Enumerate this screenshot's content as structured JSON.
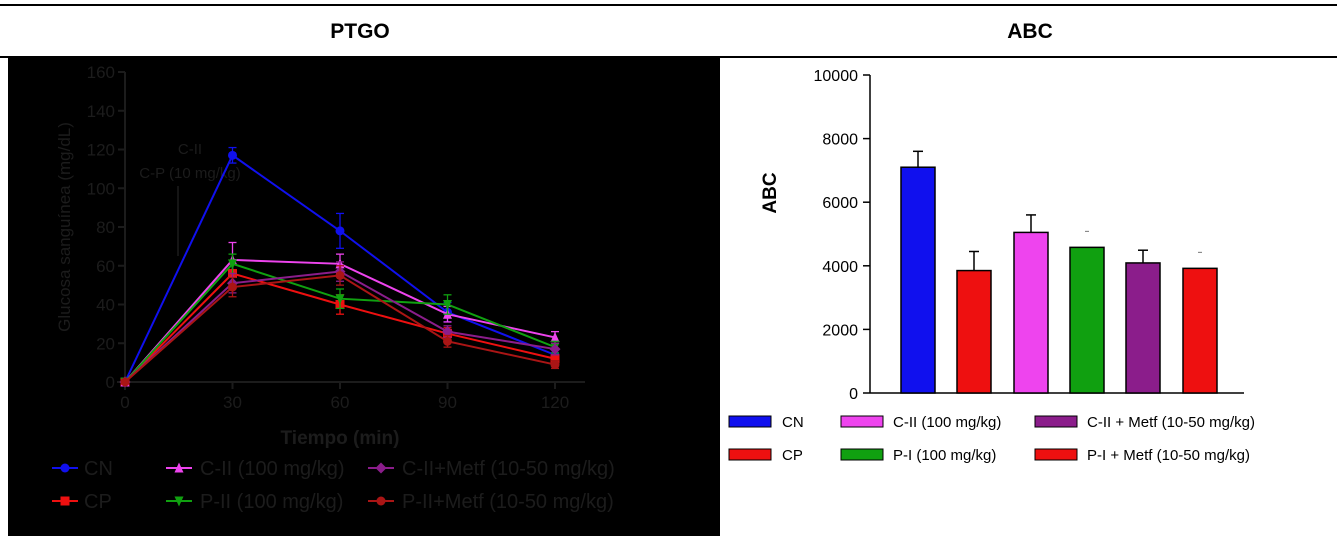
{
  "headers": {
    "left": "PTGO",
    "right": "ABC"
  },
  "colors": {
    "blue": "#1010ee",
    "red": "#ee1010",
    "magenta": "#ee44ee",
    "green": "#10a010",
    "purple": "#8b1d8b",
    "darkred": "#aa1515"
  },
  "chart_data": [
    {
      "type": "line",
      "title": "PTGO",
      "xlabel": "Tiempo (min)",
      "ylabel": "Glucosa sanguínea (mg/dL)",
      "x": [
        0,
        30,
        60,
        90,
        120
      ],
      "xlim": [
        0,
        120
      ],
      "ylim": [
        0,
        160
      ],
      "yticks": [
        0,
        20,
        40,
        60,
        80,
        100,
        120,
        140,
        160
      ],
      "annotation": [
        "C-II",
        "C-P (10 mg/kg)"
      ],
      "series": [
        {
          "name": "CN",
          "color": "#1010ee",
          "marker": "circle",
          "values": [
            0,
            117,
            78,
            36,
            14
          ],
          "errors": [
            0,
            4,
            9,
            5,
            3
          ]
        },
        {
          "name": "CP",
          "color": "#ee1010",
          "marker": "square",
          "values": [
            0,
            56,
            40,
            25,
            12
          ],
          "errors": [
            0,
            5,
            5,
            3,
            2
          ]
        },
        {
          "name": "C-II (100 mg/kg)",
          "color": "#ee44ee",
          "marker": "triangle-up",
          "values": [
            0,
            63,
            61,
            35,
            23
          ],
          "errors": [
            0,
            9,
            5,
            4,
            3
          ]
        },
        {
          "name": "P-II (100 mg/kg)",
          "color": "#10a010",
          "marker": "triangle-down",
          "values": [
            0,
            61,
            43,
            40,
            18
          ],
          "errors": [
            0,
            5,
            5,
            5,
            3
          ]
        },
        {
          "name": "C-II+Metf (10-50 mg/kg)",
          "color": "#8b1d8b",
          "marker": "diamond",
          "values": [
            0,
            51,
            57,
            26,
            17
          ],
          "errors": [
            0,
            5,
            5,
            3,
            3
          ]
        },
        {
          "name": "P-II+Metf (10-50 mg/kg)",
          "color": "#aa1515",
          "marker": "circle",
          "values": [
            0,
            49,
            55,
            21,
            9
          ],
          "errors": [
            0,
            5,
            5,
            3,
            2
          ]
        }
      ]
    },
    {
      "type": "bar",
      "title": "ABC",
      "ylabel": "ABC",
      "ylim": [
        0,
        10000
      ],
      "yticks": [
        0,
        2000,
        4000,
        6000,
        8000,
        10000
      ],
      "categories": [
        "CN",
        "CP",
        "C-II (100 mg/kg)",
        "P-I (100 mg/kg)",
        "C-II + Metf (10-50 mg/kg)",
        "P-I + Metf (10-50 mg/kg)"
      ],
      "values": [
        7100,
        3850,
        5050,
        4580,
        4090,
        3920
      ],
      "errors": [
        500,
        600,
        550,
        0,
        400,
        0
      ],
      "colors": [
        "#1010ee",
        "#ee1010",
        "#ee44ee",
        "#10a010",
        "#8b1d8b",
        "#ee1010"
      ]
    }
  ]
}
